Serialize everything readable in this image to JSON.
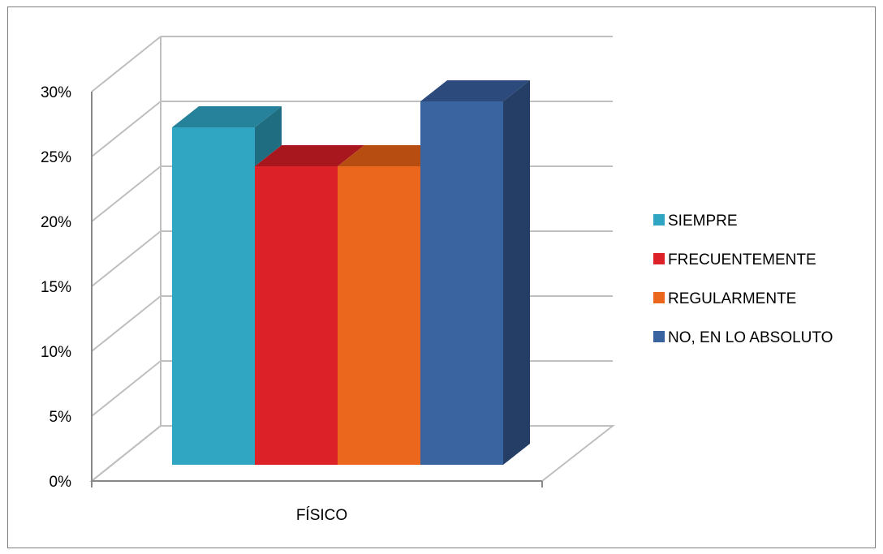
{
  "chart_data": {
    "type": "bar",
    "categories": [
      "FÍSICO"
    ],
    "series": [
      {
        "name": "SIEMPRE",
        "values": [
          0.26
        ],
        "color": "#31a6c3",
        "top_color": "#26829a",
        "side_color": "#1e6d80"
      },
      {
        "name": "FRECUENTEMENTE",
        "values": [
          0.23
        ],
        "color": "#dc2129",
        "top_color": "#a8161e",
        "side_color": "#8f1419"
      },
      {
        "name": "REGULARMENTE",
        "values": [
          0.23
        ],
        "color": "#ec671e",
        "top_color": "#b84d12",
        "side_color": "#a04210"
      },
      {
        "name": "NO, EN LO ABSOLUTO",
        "values": [
          0.28
        ],
        "color": "#3a64a0",
        "top_color": "#2c4b7c",
        "side_color": "#243e66"
      }
    ],
    "y_ticks": [
      "0%",
      "5%",
      "10%",
      "15%",
      "20%",
      "25%",
      "30%"
    ],
    "ylim": [
      0,
      0.3
    ],
    "grid": true,
    "legend_position": "right",
    "chart_style": "3d-clustered-column"
  }
}
